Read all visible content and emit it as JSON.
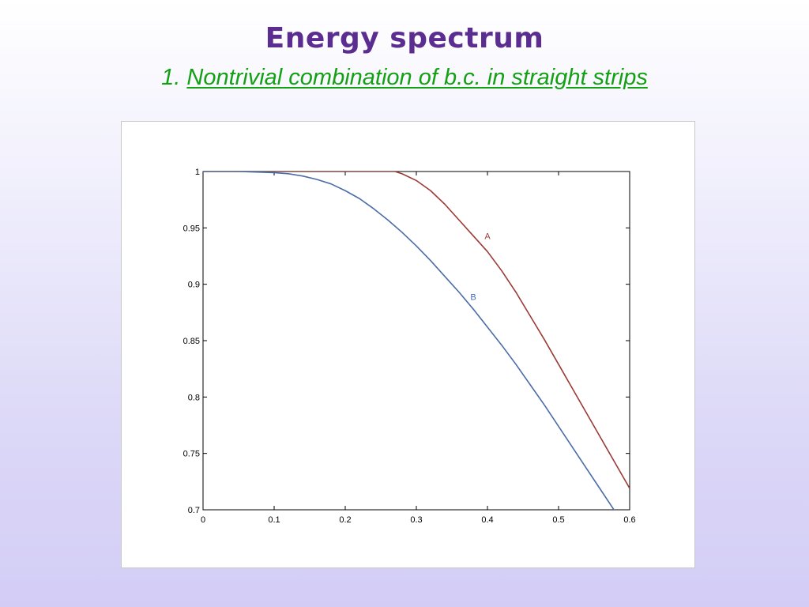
{
  "slide": {
    "title": "Energy spectrum",
    "subtitle_number": "1.",
    "subtitle_text": "Nontrivial combination of b.c. in straight strips"
  },
  "chart_data": {
    "type": "line",
    "title": "",
    "xlabel": "",
    "ylabel": "",
    "xlim": [
      0,
      0.6
    ],
    "ylim": [
      0.7,
      1.0
    ],
    "xticks": [
      0,
      0.1,
      0.2,
      0.3,
      0.4,
      0.5,
      0.6
    ],
    "xtick_labels": [
      "0",
      "0.1",
      "0.2",
      "0.3",
      "0.4",
      "0.5",
      "0.6"
    ],
    "yticks": [
      0.7,
      0.75,
      0.8,
      0.85,
      0.9,
      0.95,
      1.0
    ],
    "ytick_labels": [
      "0.7",
      "0.75",
      "0.8",
      "0.85",
      "0.9",
      "0.95",
      "1"
    ],
    "grid": false,
    "series": [
      {
        "name": "A",
        "color": "#9b3a35",
        "x": [
          0,
          0.26,
          0.27,
          0.28,
          0.3,
          0.32,
          0.34,
          0.36,
          0.38,
          0.4,
          0.42,
          0.44,
          0.46,
          0.48,
          0.5,
          0.52,
          0.54,
          0.56,
          0.58,
          0.6
        ],
        "y": [
          1.0,
          1.0,
          1.0,
          0.998,
          0.992,
          0.983,
          0.971,
          0.957,
          0.943,
          0.929,
          0.912,
          0.893,
          0.872,
          0.851,
          0.829,
          0.807,
          0.785,
          0.763,
          0.741,
          0.719
        ]
      },
      {
        "name": "B",
        "color": "#4a6ca8",
        "x": [
          0,
          0.05,
          0.1,
          0.12,
          0.14,
          0.16,
          0.18,
          0.2,
          0.22,
          0.24,
          0.26,
          0.28,
          0.3,
          0.32,
          0.34,
          0.36,
          0.38,
          0.4,
          0.42,
          0.44,
          0.46,
          0.48,
          0.5,
          0.52,
          0.54,
          0.56,
          0.58,
          0.6
        ],
        "y": [
          1.0,
          1.0,
          0.999,
          0.998,
          0.996,
          0.993,
          0.989,
          0.983,
          0.976,
          0.967,
          0.957,
          0.946,
          0.934,
          0.921,
          0.907,
          0.893,
          0.878,
          0.862,
          0.846,
          0.829,
          0.811,
          0.793,
          0.774,
          0.755,
          0.736,
          0.717,
          0.698,
          0.679
        ]
      }
    ],
    "annotations": [
      {
        "text": "A",
        "x": 0.4,
        "y": 0.94,
        "color": "#9b3a35"
      },
      {
        "text": "B",
        "x": 0.38,
        "y": 0.886,
        "color": "#4a6ca8"
      }
    ]
  }
}
